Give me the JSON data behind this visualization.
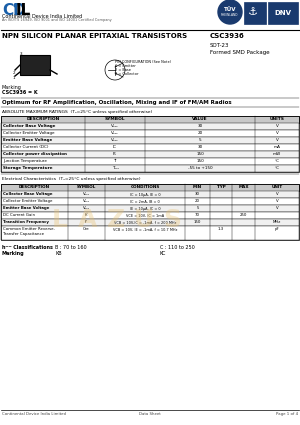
{
  "title_main": "NPN SILICON PLANAR EPITAXIAL TRANSISTORS",
  "part_number": "CSC3936",
  "package": "SOT-23",
  "package_sub": "Formed SMD Package",
  "company": "Continental Device India Limited",
  "company_sub": "An ISO/TS 16949, ISO 9001 and ISO 14001 Certified Company",
  "marking_label": "Marking",
  "marking_value": "CSC3936 = K",
  "optimum_text": "Optimum for RF Amplification, Oscillation, Mixing and IF of FM/AM Radios",
  "abs_title": "ABSOLUTE MAXIMUM RATINGS  (Tₐ=25°C unless specified otherwise)",
  "abs_headers": [
    "DESCRIPTION",
    "SYMBOL",
    "VALUE",
    "UNITS"
  ],
  "abs_rows": [
    [
      "Collector Base Voltage",
      "V₀₂₀",
      "30",
      "V"
    ],
    [
      "Collector Emitter Voltage",
      "V₀₂₀",
      "20",
      "V"
    ],
    [
      "Emitter Base Voltage",
      "V₀₂₀",
      "5",
      "V"
    ],
    [
      "Collector Current (DC)",
      "IC",
      "30",
      "mA"
    ],
    [
      "Collector power dissipation",
      "P₀",
      "150",
      "mW"
    ],
    [
      "Junction Temperature",
      "Tⁱ",
      "150",
      "°C"
    ],
    [
      "Storage Temperature",
      "Tₛₜ₉",
      "-55 to +150",
      "°C"
    ]
  ],
  "elec_title": "Electrical Characteristics  (Tₐ=25°C unless specified otherwise)",
  "elec_headers": [
    "DESCRIPTION",
    "SYMBOL",
    "CONDITIONS",
    "MIN",
    "TYP",
    "MAX",
    "UNIT"
  ],
  "elec_rows": [
    [
      "Collector Base Voltage",
      "V₀₂₀",
      "IC = 10μA, IE = 0",
      "30",
      "",
      "",
      "V"
    ],
    [
      "Collector Emitter Voltage",
      "V₀₂₀",
      "IC = 2mA, IB = 0",
      "20",
      "",
      "",
      "V"
    ],
    [
      "Emitter Base Voltage",
      "V₀₂₀",
      "IE = 10μA, IC = 0",
      "5",
      "",
      "",
      "V"
    ],
    [
      "DC Current Gain",
      "hⁱⁱ",
      "VCE = 10V, IC = 1mA",
      "70",
      "",
      "250",
      ""
    ],
    [
      "Transition Frequency",
      "fᵀ",
      "VCB = 10V,IC = -1mA, f = 200 MHz",
      "150",
      "",
      "",
      "MHz"
    ],
    [
      "Common Emitter Reverse-\nTransfer Capacitance",
      "Cre",
      "VCB = 10V, IE = -1mA, f = 10.7 MHz",
      "",
      "1.3",
      "",
      "pF"
    ]
  ],
  "hfe_class": "hFE Classifications    B : 70 to 160          C : 110 to 250",
  "marking_row": "Marking                        KB                              KC",
  "footer_company": "Continental Device India Limited",
  "footer_center": "Data Sheet",
  "footer_right": "Page 1 of 4",
  "bg_color": "#ffffff",
  "header_bg": "#d0d0d0",
  "table_line_color": "#000000",
  "logo_blue": "#1a3a6e",
  "watermark_color": "#e8c87a",
  "text_color": "#000000"
}
